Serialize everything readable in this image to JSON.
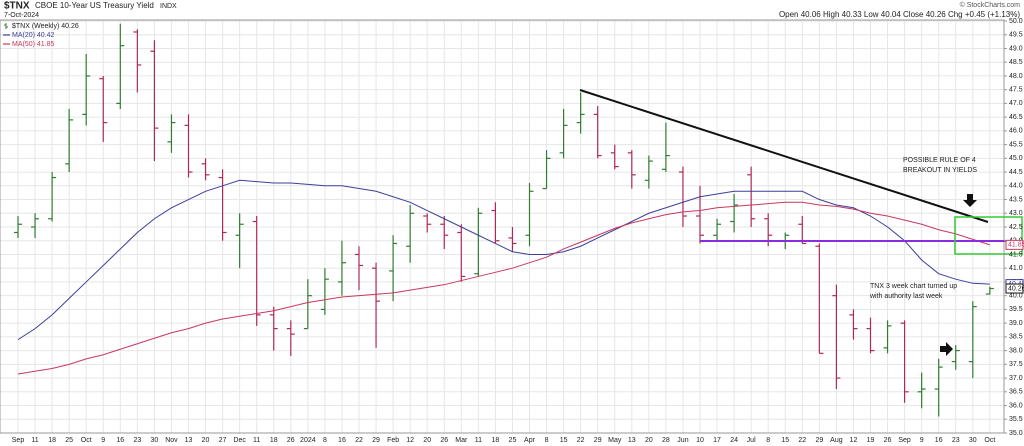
{
  "chart_data": {
    "type": "ohlc",
    "symbol": "$TNX",
    "title": "CBOE 10-Year US Treasury Yield",
    "exchange": "INDX",
    "date": "7-Oct-2024",
    "quote": "Open 40.06 High 40.33 Low 40.04 Close 40.26 Chg +0.45 (+1.13%)",
    "credit": "© StockCharts.com",
    "categories": [
      "Sep",
      "11",
      "18",
      "25",
      "Oct",
      "9",
      "16",
      "23",
      "30",
      "Nov",
      "13",
      "20",
      "27",
      "Dec",
      "11",
      "18",
      "26",
      "2024",
      "8",
      "16",
      "22",
      "29",
      "Feb",
      "12",
      "20",
      "26",
      "Mar",
      "11",
      "18",
      "25",
      "Apr",
      "8",
      "15",
      "22",
      "29",
      "May",
      "13",
      "20",
      "28",
      "Jun",
      "10",
      "17",
      "24",
      "Jul",
      "8",
      "15",
      "22",
      "29",
      "Aug",
      "12",
      "19",
      "26",
      "Sep",
      "9",
      "16",
      "23",
      "30",
      "Oct"
    ],
    "series": [
      {
        "name": "$TNX (Weekly) 40.26",
        "type": "ohlc",
        "up_color": "#2f7d32",
        "down_color": "#b0285a",
        "open": [
          42.3,
          42.5,
          42.8,
          44.8,
          46.6,
          47.9,
          47.0,
          49.6,
          48.9,
          45.6,
          46.2,
          44.8,
          44.3,
          42.2,
          42.7,
          39.3,
          38.8,
          38.8,
          39.5,
          40.5,
          41.5,
          41.0,
          40.9,
          41.8,
          42.9,
          42.6,
          42.3,
          40.8,
          43.1,
          42.1,
          42.2,
          43.9,
          45.2,
          46.3,
          46.6,
          45.2,
          45.2,
          44.2,
          44.6,
          44.5,
          42.9,
          42.2,
          42.7,
          44.4,
          42.8,
          42.0,
          42.6,
          41.8,
          40.0,
          39.3,
          38.8,
          38.1,
          39.0,
          36.5,
          36.6,
          37.6,
          37.6,
          40.06
        ],
        "high": [
          42.9,
          43.0,
          44.5,
          46.8,
          48.8,
          48.0,
          49.9,
          49.7,
          49.3,
          46.6,
          46.6,
          45.0,
          44.6,
          43.0,
          42.9,
          39.6,
          39.1,
          40.6,
          41.0,
          42.0,
          41.8,
          41.2,
          42.2,
          43.3,
          43.0,
          42.9,
          42.6,
          43.2,
          43.4,
          42.5,
          44.1,
          45.3,
          46.8,
          47.4,
          46.9,
          45.5,
          45.3,
          45.1,
          46.3,
          44.7,
          44.0,
          42.8,
          43.7,
          44.7,
          43.0,
          42.3,
          42.9,
          41.9,
          40.4,
          39.5,
          39.2,
          39.1,
          39.1,
          37.2,
          37.7,
          38.2,
          39.8,
          40.33
        ],
        "low": [
          42.1,
          42.1,
          42.7,
          44.5,
          46.2,
          45.6,
          46.8,
          47.4,
          44.9,
          45.2,
          44.3,
          44.2,
          42.0,
          41.0,
          38.9,
          38.0,
          37.8,
          38.8,
          39.3,
          40.0,
          40.2,
          38.1,
          39.8,
          41.2,
          42.3,
          41.7,
          40.5,
          40.7,
          41.9,
          41.6,
          41.8,
          43.9,
          45.0,
          45.9,
          45.0,
          44.6,
          43.9,
          43.9,
          44.5,
          42.5,
          41.9,
          42.0,
          42.3,
          42.5,
          41.8,
          41.7,
          41.9,
          37.9,
          36.6,
          38.4,
          37.9,
          37.9,
          36.1,
          35.9,
          35.6,
          37.3,
          37.0,
          40.04
        ],
        "close": [
          42.6,
          42.8,
          44.3,
          46.4,
          48.0,
          46.3,
          49.1,
          48.4,
          46.1,
          46.3,
          44.5,
          44.4,
          42.3,
          42.6,
          39.3,
          38.8,
          38.6,
          40.0,
          40.6,
          41.2,
          41.1,
          39.8,
          41.9,
          43.0,
          42.6,
          42.2,
          40.7,
          43.0,
          42.0,
          41.9,
          43.8,
          45.0,
          46.2,
          46.6,
          45.1,
          44.7,
          44.4,
          44.9,
          45.1,
          42.9,
          42.2,
          42.6,
          43.3,
          42.8,
          42.2,
          42.2,
          41.9,
          37.9,
          37.0,
          38.8,
          38.0,
          38.9,
          36.5,
          36.6,
          37.4,
          38.0,
          39.6,
          40.26
        ]
      },
      {
        "name": "MA(20) 40.42",
        "type": "line",
        "color": "#3b3f9a",
        "values": [
          38.4,
          38.8,
          39.3,
          39.9,
          40.5,
          41.1,
          41.7,
          42.3,
          42.8,
          43.2,
          43.5,
          43.8,
          44.0,
          44.2,
          44.15,
          44.1,
          44.1,
          44.05,
          44.0,
          44.0,
          43.9,
          43.8,
          43.6,
          43.4,
          43.1,
          42.8,
          42.5,
          42.2,
          41.9,
          41.6,
          41.5,
          41.5,
          41.6,
          41.8,
          42.1,
          42.4,
          42.7,
          43.0,
          43.2,
          43.4,
          43.6,
          43.7,
          43.8,
          43.8,
          43.8,
          43.8,
          43.8,
          43.5,
          43.3,
          43.2,
          42.9,
          42.5,
          42.0,
          41.3,
          40.8,
          40.6,
          40.45,
          40.42
        ]
      },
      {
        "name": "MA(50) 41.85",
        "type": "line",
        "color": "#c8385e",
        "values": [
          37.15,
          37.25,
          37.35,
          37.5,
          37.7,
          37.85,
          38.05,
          38.25,
          38.45,
          38.65,
          38.8,
          39.0,
          39.15,
          39.25,
          39.35,
          39.45,
          39.6,
          39.75,
          39.85,
          39.95,
          40.0,
          40.05,
          40.1,
          40.2,
          40.3,
          40.4,
          40.55,
          40.7,
          40.85,
          41.0,
          41.2,
          41.4,
          41.7,
          41.95,
          42.2,
          42.45,
          42.65,
          42.8,
          42.95,
          43.05,
          43.1,
          43.2,
          43.25,
          43.3,
          43.35,
          43.4,
          43.4,
          43.3,
          43.25,
          43.15,
          43.0,
          42.9,
          42.75,
          42.6,
          42.4,
          42.25,
          42.05,
          41.85
        ]
      }
    ],
    "ylim": [
      35,
      50
    ],
    "yticks": [
      {
        "value": 35,
        "label": "35.0"
      },
      35.5,
      {
        "value": 36,
        "label": "36.0"
      },
      36.5,
      {
        "value": 37,
        "label": "37.0"
      },
      37.5,
      {
        "value": 38,
        "label": "38.0"
      },
      38.5,
      {
        "value": 39,
        "label": "39.0"
      },
      39.5,
      {
        "value": 40,
        "label": "40.0"
      },
      40.5,
      {
        "value": 41,
        "label": "41.0"
      },
      41.5,
      {
        "value": 42,
        "label": "42.0"
      },
      42.5,
      {
        "value": 43,
        "label": "43.0"
      },
      43.5,
      {
        "value": 44,
        "label": "44.0"
      },
      44.5,
      {
        "value": 45,
        "label": "45.0"
      },
      45.5,
      {
        "value": 46,
        "label": "46.0"
      },
      46.5,
      {
        "value": 47,
        "label": "47.0"
      },
      47.5,
      {
        "value": 48,
        "label": "48.0"
      },
      48.5,
      {
        "value": 49,
        "label": "49.0"
      },
      49.5,
      {
        "value": 50,
        "label": "50.0"
      }
    ],
    "grid": true,
    "annotations": [
      [
        "POSSIBLE RULE OF 4",
        "BREAKOUT IN YIELDS"
      ],
      [
        "TNX 3 week chart turned up",
        "with authority last week"
      ]
    ]
  }
}
